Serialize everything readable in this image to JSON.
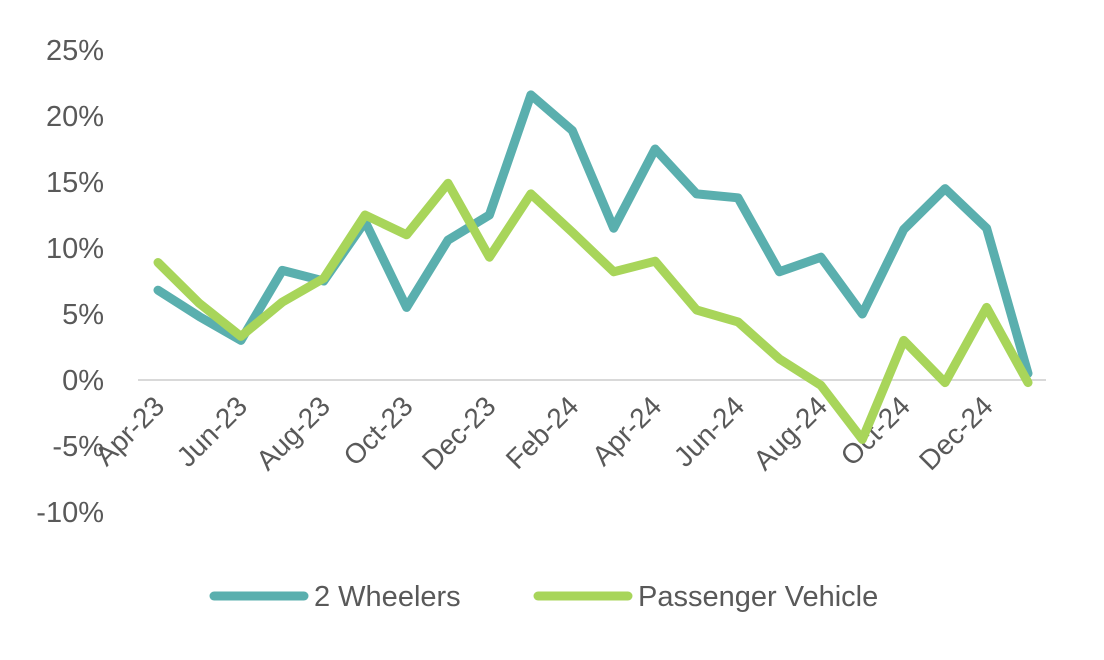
{
  "chart_data": {
    "type": "line",
    "title": "",
    "xlabel": "",
    "ylabel": "",
    "categories": [
      "Apr-23",
      "May-23",
      "Jun-23",
      "Jul-23",
      "Aug-23",
      "Sep-23",
      "Oct-23",
      "Nov-23",
      "Dec-23",
      "Jan-24",
      "Feb-24",
      "Mar-24",
      "Apr-24",
      "May-24",
      "Jun-24",
      "Jul-24",
      "Aug-24",
      "Sep-24",
      "Oct-24",
      "Nov-24",
      "Dec-24",
      "Jan-25"
    ],
    "x_tick_labels": [
      "Apr-23",
      "Jun-23",
      "Aug-23",
      "Oct-23",
      "Dec-23",
      "Feb-24",
      "Apr-24",
      "Jun-24",
      "Aug-24",
      "Oct-24",
      "Dec-24"
    ],
    "y_tick_labels": [
      "25%",
      "20%",
      "15%",
      "10%",
      "5%",
      "0%",
      "-5%",
      "-10%"
    ],
    "y_ticks": [
      25,
      20,
      15,
      10,
      5,
      0,
      -5,
      -10
    ],
    "ylim": [
      -10,
      25
    ],
    "y_unit": "%",
    "grid": false,
    "legend_position": "bottom",
    "series": [
      {
        "name": "2 Wheelers",
        "color": "#5AAFAE",
        "values": [
          6.8,
          4.8,
          3.0,
          8.3,
          7.5,
          12.0,
          5.5,
          10.6,
          12.5,
          21.6,
          18.9,
          11.5,
          17.5,
          14.1,
          13.8,
          8.2,
          9.3,
          5.0,
          11.4,
          14.5,
          11.5,
          0.5
        ]
      },
      {
        "name": "Passenger Vehicle",
        "color": "#A8D55A",
        "values": [
          8.9,
          5.8,
          3.3,
          5.9,
          7.7,
          12.5,
          11.0,
          14.9,
          9.3,
          14.1,
          11.2,
          8.2,
          9.0,
          5.3,
          4.4,
          1.6,
          -0.4,
          -4.5,
          3.0,
          -0.2,
          5.5,
          -0.2
        ]
      }
    ]
  }
}
